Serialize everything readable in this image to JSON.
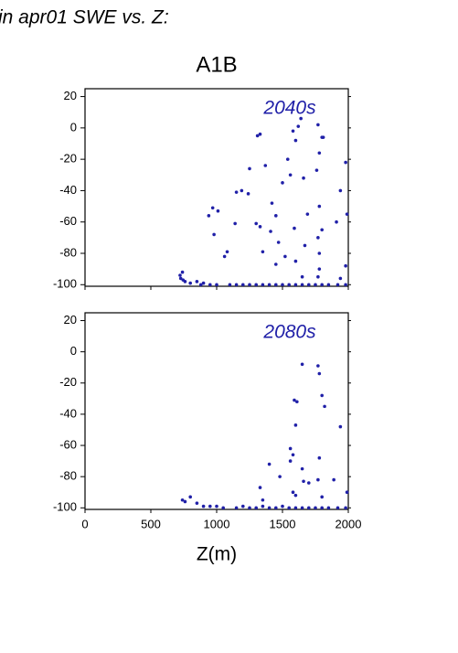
{
  "header": {
    "caption": "in apr01 SWE vs. Z:",
    "title": "A1B"
  },
  "chart_data": [
    {
      "type": "scatter",
      "annotation": "2040s",
      "color": "#2020a8",
      "xlim": [
        0,
        2000
      ],
      "ylim": [
        -101,
        25
      ],
      "xticks": [
        0,
        500,
        1000,
        1500,
        2000
      ],
      "yticks": [
        -100,
        -80,
        -60,
        -40,
        -20,
        0,
        20
      ],
      "xtick_labels": false,
      "x": [
        722,
        727,
        740,
        745,
        760,
        800,
        850,
        880,
        900,
        950,
        1000,
        1100,
        1150,
        1200,
        1250,
        1300,
        1350,
        1400,
        1450,
        1500,
        1550,
        1600,
        1650,
        1700,
        1750,
        1800,
        1850,
        1920,
        1980,
        1310,
        1330,
        1250,
        1370,
        1540,
        1580,
        1600,
        1620,
        1640,
        1770,
        1800,
        1810,
        1780,
        1980,
        1760,
        1560,
        1190,
        1240,
        1150,
        1500,
        1660,
        1420,
        1940,
        970,
        1010,
        940,
        1450,
        1690,
        1780,
        1300,
        1140,
        1330,
        1590,
        1910,
        1990,
        980,
        1410,
        1470,
        1520,
        1770,
        1780,
        1080,
        1060,
        1350,
        1670,
        1800,
        1780,
        1980,
        1600,
        1450,
        1770,
        1650,
        1940
      ],
      "values": [
        -94,
        -96,
        -92,
        -97,
        -98,
        -99,
        -98,
        -100,
        -99,
        -100,
        -100,
        -100,
        -100,
        -100,
        -100,
        -100,
        -100,
        -100,
        -100,
        -100,
        -100,
        -100,
        -100,
        -100,
        -100,
        -100,
        -100,
        -100,
        -100,
        -5,
        -4,
        -26,
        -24,
        -20,
        -2,
        -8,
        1,
        6,
        2,
        -6,
        -6,
        -16,
        -22,
        -27,
        -30,
        -40,
        -42,
        -41,
        -35,
        -32,
        -48,
        -40,
        -51,
        -53,
        -56,
        -56,
        -55,
        -50,
        -61,
        -61,
        -63,
        -64,
        -60,
        -55,
        -68,
        -66,
        -73,
        -82,
        -70,
        -80,
        -79,
        -82,
        -79,
        -75,
        -65,
        -90,
        -88,
        -85,
        -87,
        -95,
        -95,
        -96
      ]
    },
    {
      "type": "scatter",
      "annotation": "2080s",
      "color": "#2020a8",
      "xlabel": "Z(m)",
      "xlim": [
        0,
        2000
      ],
      "ylim": [
        -101,
        25
      ],
      "xticks": [
        0,
        500,
        1000,
        1500,
        2000
      ],
      "yticks": [
        -100,
        -80,
        -60,
        -40,
        -20,
        0,
        20
      ],
      "xtick_labels": true,
      "x": [
        740,
        760,
        800,
        850,
        900,
        950,
        1000,
        1050,
        1150,
        1200,
        1250,
        1300,
        1350,
        1400,
        1450,
        1500,
        1550,
        1600,
        1650,
        1700,
        1750,
        1800,
        1850,
        1920,
        1980,
        1650,
        1770,
        1780,
        1590,
        1610,
        1800,
        1820,
        1600,
        1940,
        1560,
        1580,
        1780,
        1560,
        1400,
        1650,
        1770,
        1480,
        1660,
        1700,
        1330,
        1580,
        1990,
        1890,
        1600,
        1350,
        1800
      ],
      "values": [
        -95,
        -96,
        -93,
        -97,
        -99,
        -99,
        -99,
        -100,
        -100,
        -99,
        -100,
        -100,
        -99,
        -100,
        -100,
        -99,
        -100,
        -100,
        -100,
        -100,
        -100,
        -100,
        -100,
        -100,
        -100,
        -8,
        -9,
        -14,
        -31,
        -32,
        -28,
        -35,
        -47,
        -48,
        -62,
        -66,
        -68,
        -70,
        -72,
        -75,
        -82,
        -80,
        -83,
        -84,
        -87,
        -90,
        -90,
        -82,
        -92,
        -95,
        -93
      ]
    }
  ]
}
